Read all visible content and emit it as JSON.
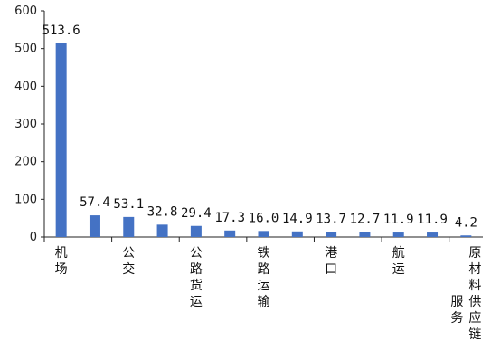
{
  "chart_data": {
    "type": "bar",
    "title": "",
    "xlabel": "",
    "ylabel": "",
    "ylim": [
      0,
      600
    ],
    "yticks": [
      0,
      100,
      200,
      300,
      400,
      500,
      600
    ],
    "grid": false,
    "bar_color": "#4472C4",
    "categories": [
      {
        "label": "机场",
        "value": 513.6,
        "value_label": "513.6"
      },
      {
        "label": "",
        "value": 57.4,
        "value_label": "57.4"
      },
      {
        "label": "公交",
        "value": 53.1,
        "value_label": "53.1"
      },
      {
        "label": "",
        "value": 32.8,
        "value_label": "32.8"
      },
      {
        "label": "公路货运",
        "value": 29.4,
        "value_label": "29.4"
      },
      {
        "label": "",
        "value": 17.3,
        "value_label": "17.3"
      },
      {
        "label": "铁路运输",
        "value": 16.0,
        "value_label": "16.0"
      },
      {
        "label": "",
        "value": 14.9,
        "value_label": "14.9"
      },
      {
        "label": "港口",
        "value": 13.7,
        "value_label": "13.7"
      },
      {
        "label": "",
        "value": 12.7,
        "value_label": "12.7"
      },
      {
        "label": "航运",
        "value": 11.9,
        "value_label": "11.9"
      },
      {
        "label": "",
        "value": 11.9,
        "value_label": "11.9"
      },
      {
        "label": "原材料供应链服务",
        "value": 4.2,
        "value_label": "4.2"
      }
    ]
  }
}
